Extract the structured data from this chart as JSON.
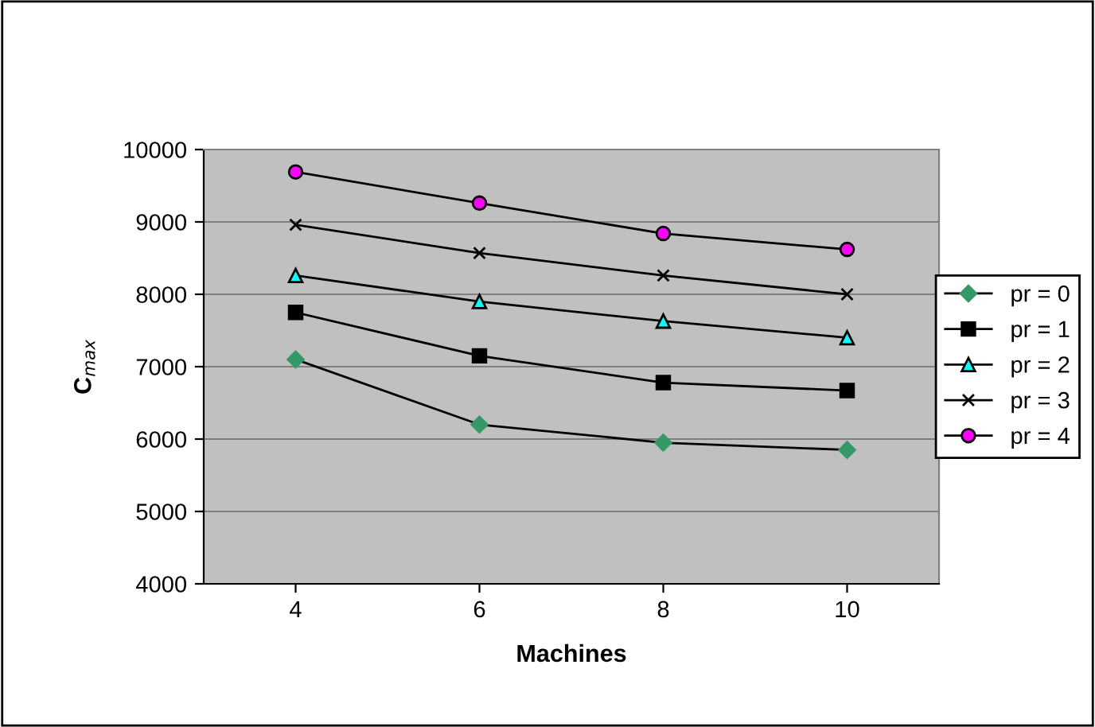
{
  "chart_data": {
    "type": "line",
    "xlabel": "Machines",
    "ylabel": "C$_{max}$",
    "categories": [
      "4",
      "6",
      "8",
      "10"
    ],
    "series": [
      {
        "name": "pr = 0",
        "color": "#339966",
        "marker": "diamond",
        "values": [
          7100,
          6200,
          5950,
          5850
        ]
      },
      {
        "name": "pr = 1",
        "color": "#000000",
        "marker": "square",
        "values": [
          7750,
          7150,
          6780,
          6670
        ]
      },
      {
        "name": "pr = 2",
        "color": "#00ffff",
        "marker": "triangle",
        "values": [
          8260,
          7900,
          7630,
          7400
        ]
      },
      {
        "name": "pr = 3",
        "color": "#000000",
        "marker": "cross",
        "values": [
          8960,
          8570,
          8260,
          8000
        ]
      },
      {
        "name": "pr = 4",
        "color": "#ff00ff",
        "marker": "circle",
        "values": [
          9690,
          9260,
          8840,
          8620
        ]
      }
    ],
    "ylim": [
      4000,
      10000
    ],
    "yticks": [
      4000,
      5000,
      6000,
      7000,
      8000,
      9000,
      10000
    ],
    "grid": "y",
    "legend": "right",
    "line_style": "solid"
  }
}
